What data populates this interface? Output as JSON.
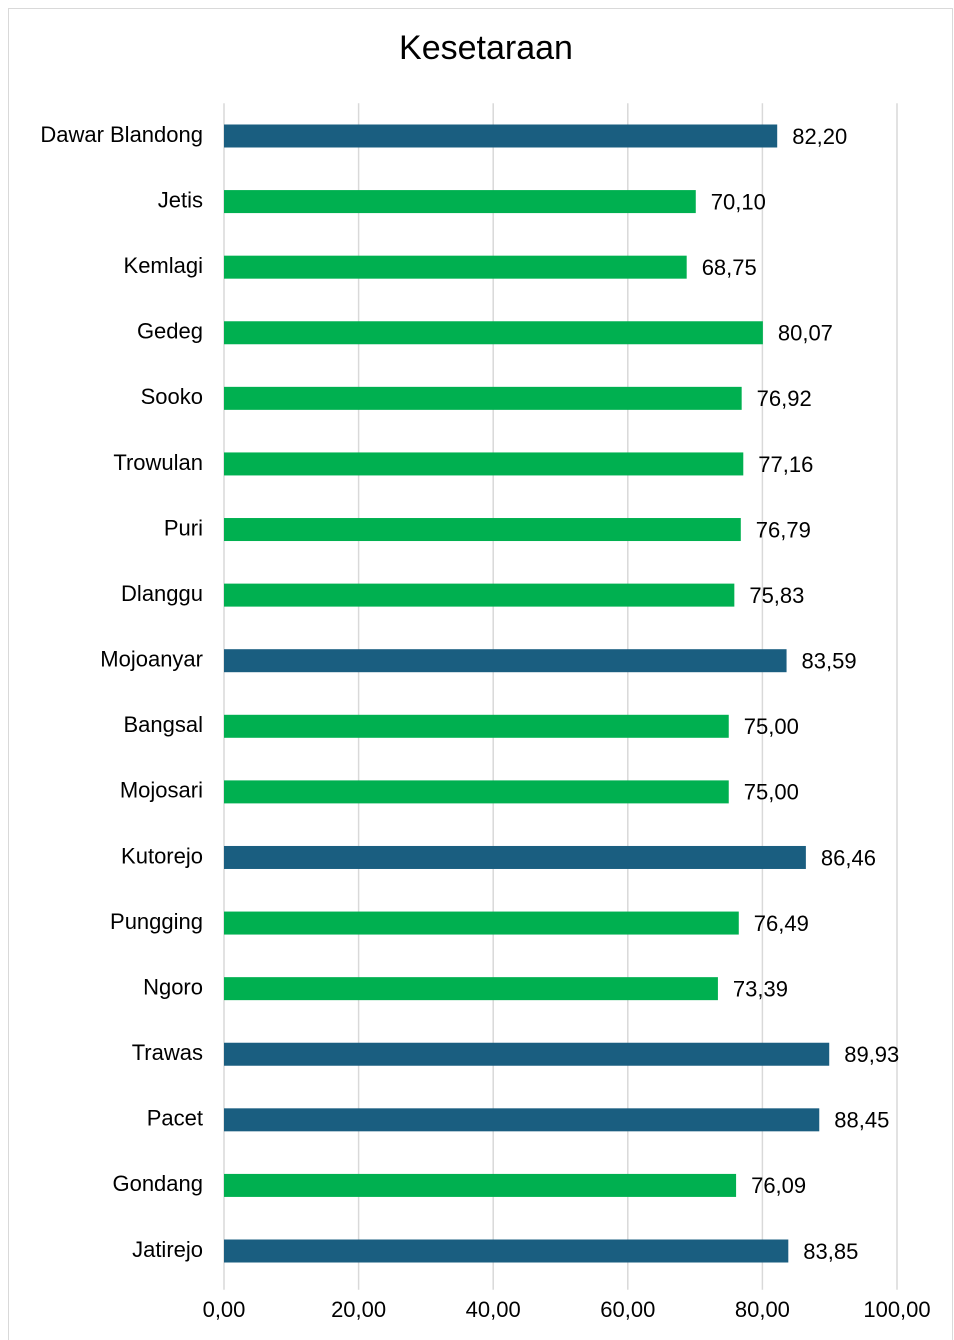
{
  "chart_data": {
    "type": "barh",
    "title": "Kesetaraan",
    "categories": [
      "Dawar Blandong",
      "Jetis",
      "Kemlagi",
      "Gedeg",
      "Sooko",
      "Trowulan",
      "Puri",
      "Dlanggu",
      "Mojoanyar",
      "Bangsal",
      "Mojosari",
      "Kutorejo",
      "Pungging",
      "Ngoro",
      "Trawas",
      "Pacet",
      "Gondang",
      "Jatirejo"
    ],
    "values": [
      82.2,
      70.1,
      68.75,
      80.07,
      76.92,
      77.16,
      76.79,
      75.83,
      83.59,
      75.0,
      75.0,
      86.46,
      76.49,
      73.39,
      89.93,
      88.45,
      76.09,
      83.85
    ],
    "value_labels": [
      "82,20",
      "70,10",
      "68,75",
      "80,07",
      "76,92",
      "77,16",
      "76,79",
      "75,83",
      "83,59",
      "75,00",
      "75,00",
      "86,46",
      "76,49",
      "73,39",
      "89,93",
      "88,45",
      "76,09",
      "83,85"
    ],
    "colors": [
      "#1a5e80",
      "#00b050",
      "#00b050",
      "#00b050",
      "#00b050",
      "#00b050",
      "#00b050",
      "#00b050",
      "#1a5e80",
      "#00b050",
      "#00b050",
      "#1a5e80",
      "#00b050",
      "#00b050",
      "#1a5e80",
      "#1a5e80",
      "#00b050",
      "#1a5e80"
    ],
    "xlim": [
      0,
      100
    ],
    "xticks": [
      {
        "value": 0,
        "label": "0,00"
      },
      {
        "value": 20,
        "label": "20,00"
      },
      {
        "value": 40,
        "label": "40,00"
      },
      {
        "value": 60,
        "label": "60,00"
      },
      {
        "value": 80,
        "label": "80,00"
      },
      {
        "value": 100,
        "label": "100,00"
      }
    ],
    "grid": true
  }
}
